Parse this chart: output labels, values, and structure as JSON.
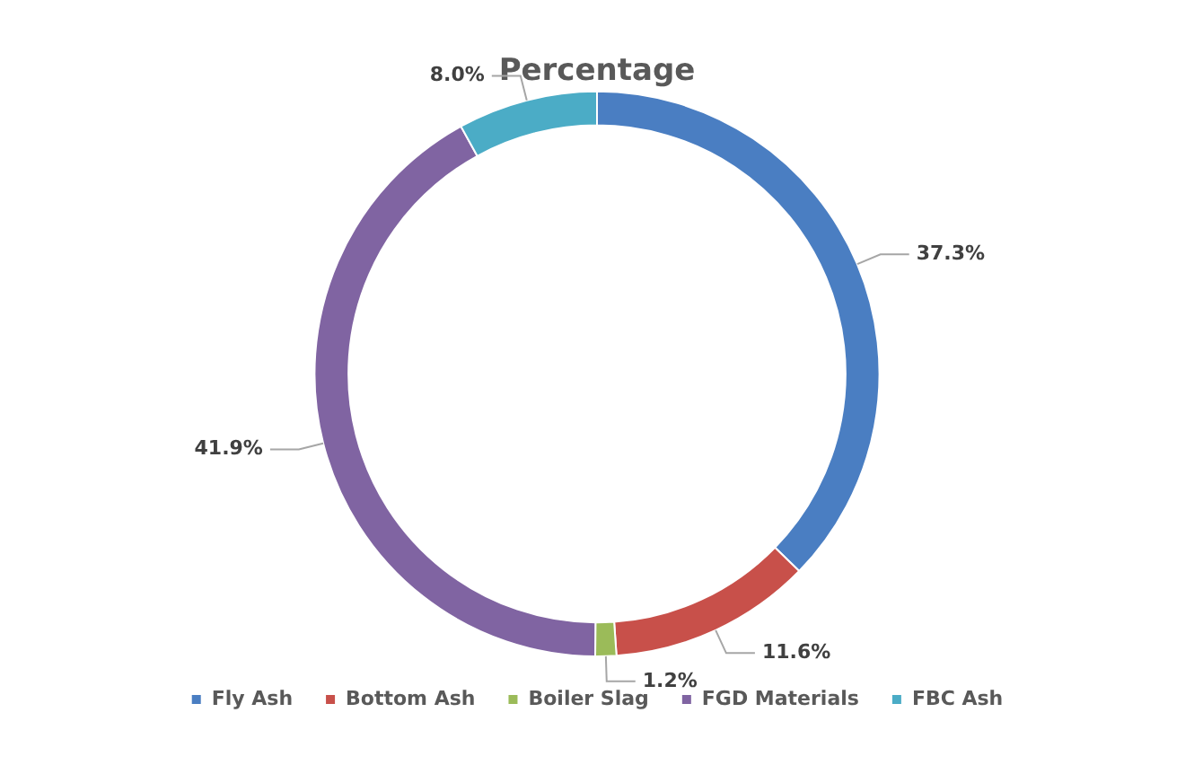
{
  "chart_data": {
    "type": "donut",
    "title": "Percentage",
    "categories": [
      "Fly Ash",
      "Bottom Ash",
      "Boiler Slag",
      "FGD Materials",
      "FBC Ash"
    ],
    "values": [
      37.3,
      11.6,
      1.2,
      41.9,
      8.0
    ],
    "colors": [
      "#4a7ec2",
      "#c8504a",
      "#9bbb59",
      "#8064a2",
      "#4bacc6"
    ],
    "value_labels": [
      "37.3%",
      "11.6%",
      "1.2%",
      "41.9%",
      "8.0%"
    ],
    "legend": "bottom"
  }
}
